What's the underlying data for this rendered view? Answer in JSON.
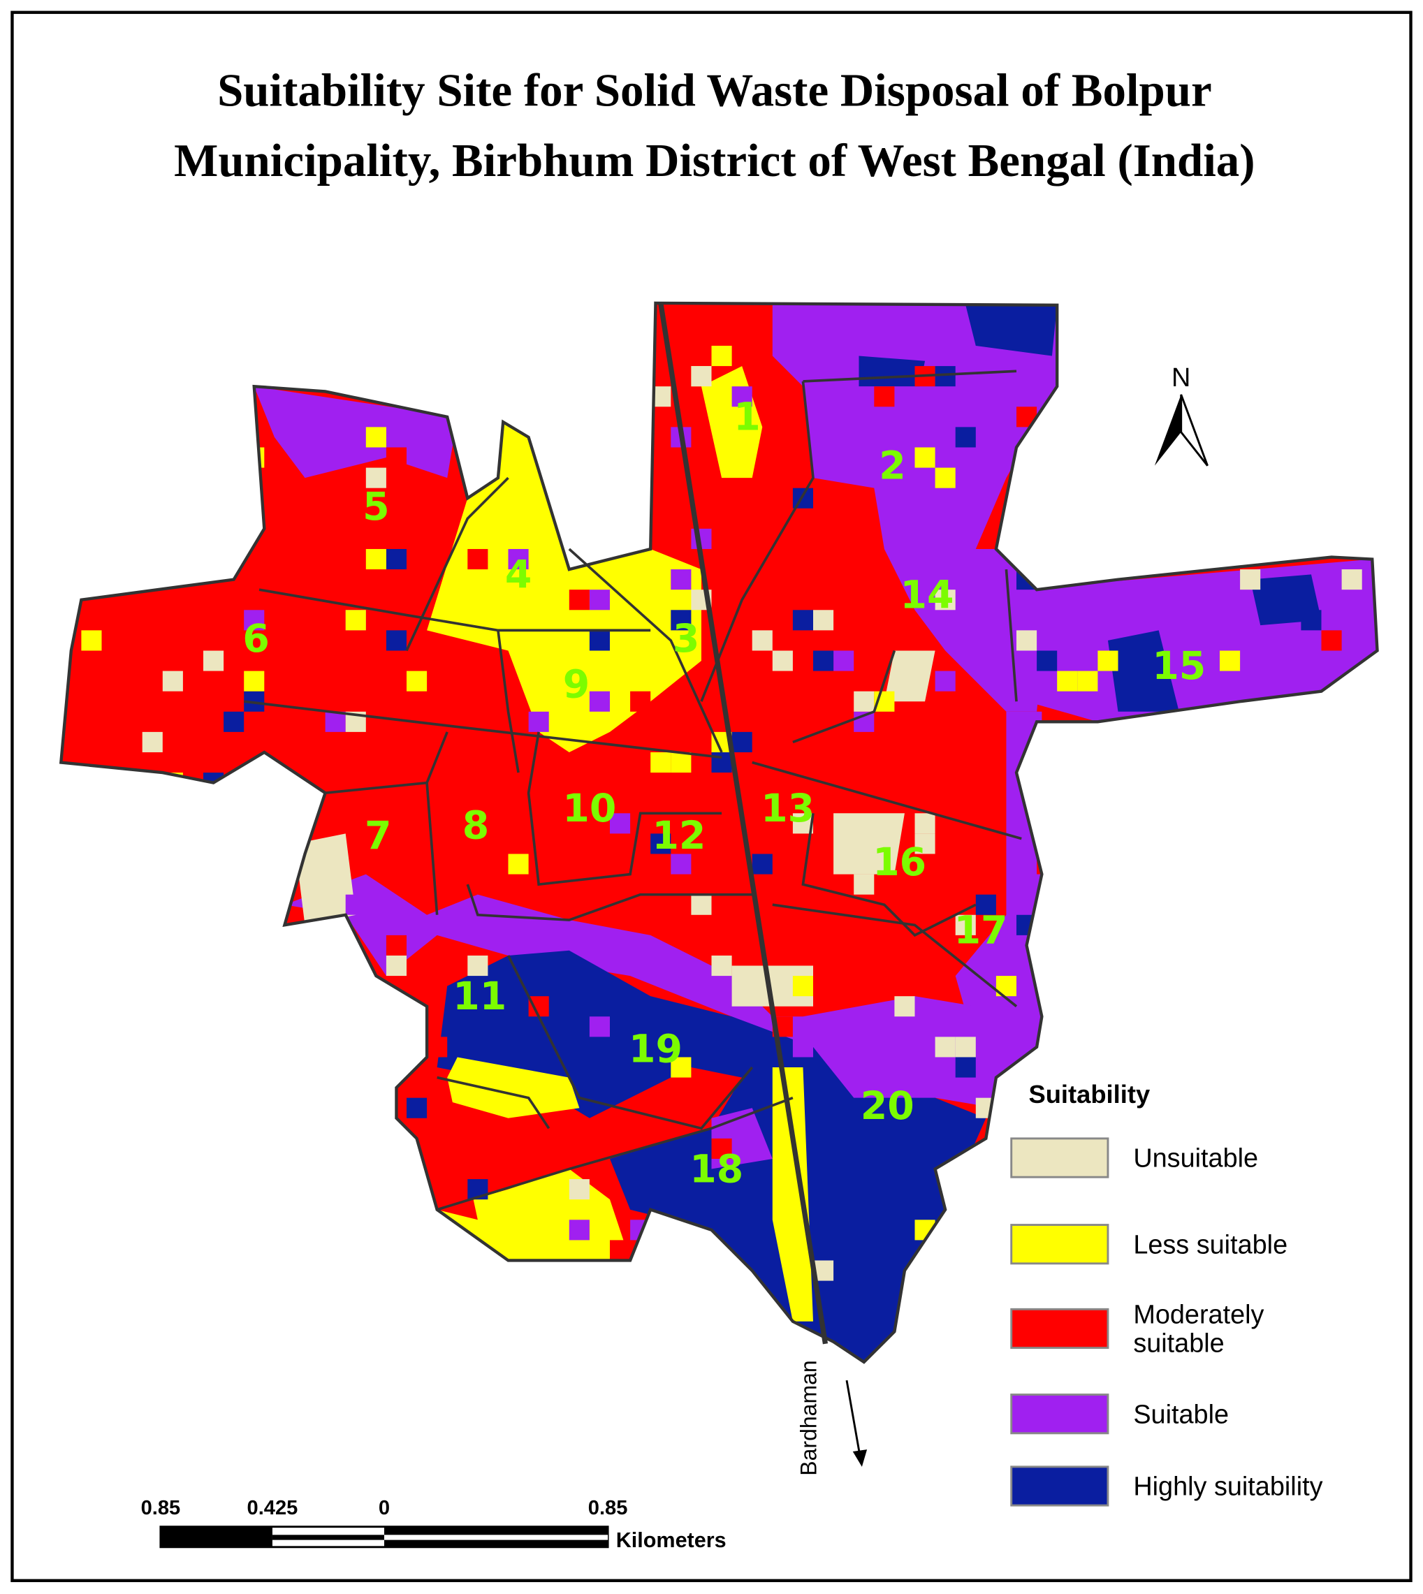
{
  "title": {
    "lines": [
      "Suitability Site for Solid Waste Disposal of Bolpur",
      "Municipality, Birbhum District of West Bengal (India)"
    ]
  },
  "wards": [
    "1",
    "2",
    "3",
    "4",
    "5",
    "6",
    "7",
    "8",
    "9",
    "10",
    "11",
    "12",
    "13",
    "14",
    "15",
    "16",
    "17",
    "18",
    "19",
    "20"
  ],
  "north": "N",
  "direction_label": "Bardhaman",
  "legend": {
    "title": "Suitability",
    "items": [
      {
        "lines": [
          "Unsuitable"
        ],
        "color": "#ece6c0"
      },
      {
        "lines": [
          "Less suitable"
        ],
        "color": "#ffff00"
      },
      {
        "lines": [
          "Moderately",
          "suitable"
        ],
        "color": "#ff0000"
      },
      {
        "lines": [
          "Suitable"
        ],
        "color": "#a020f0"
      },
      {
        "lines": [
          "Highly suitability"
        ],
        "color": "#0a1ea0"
      }
    ]
  },
  "scale_bar": {
    "labels": [
      "0.85",
      "0.425",
      "0",
      "0.85"
    ],
    "unit": "Kilometers"
  }
}
